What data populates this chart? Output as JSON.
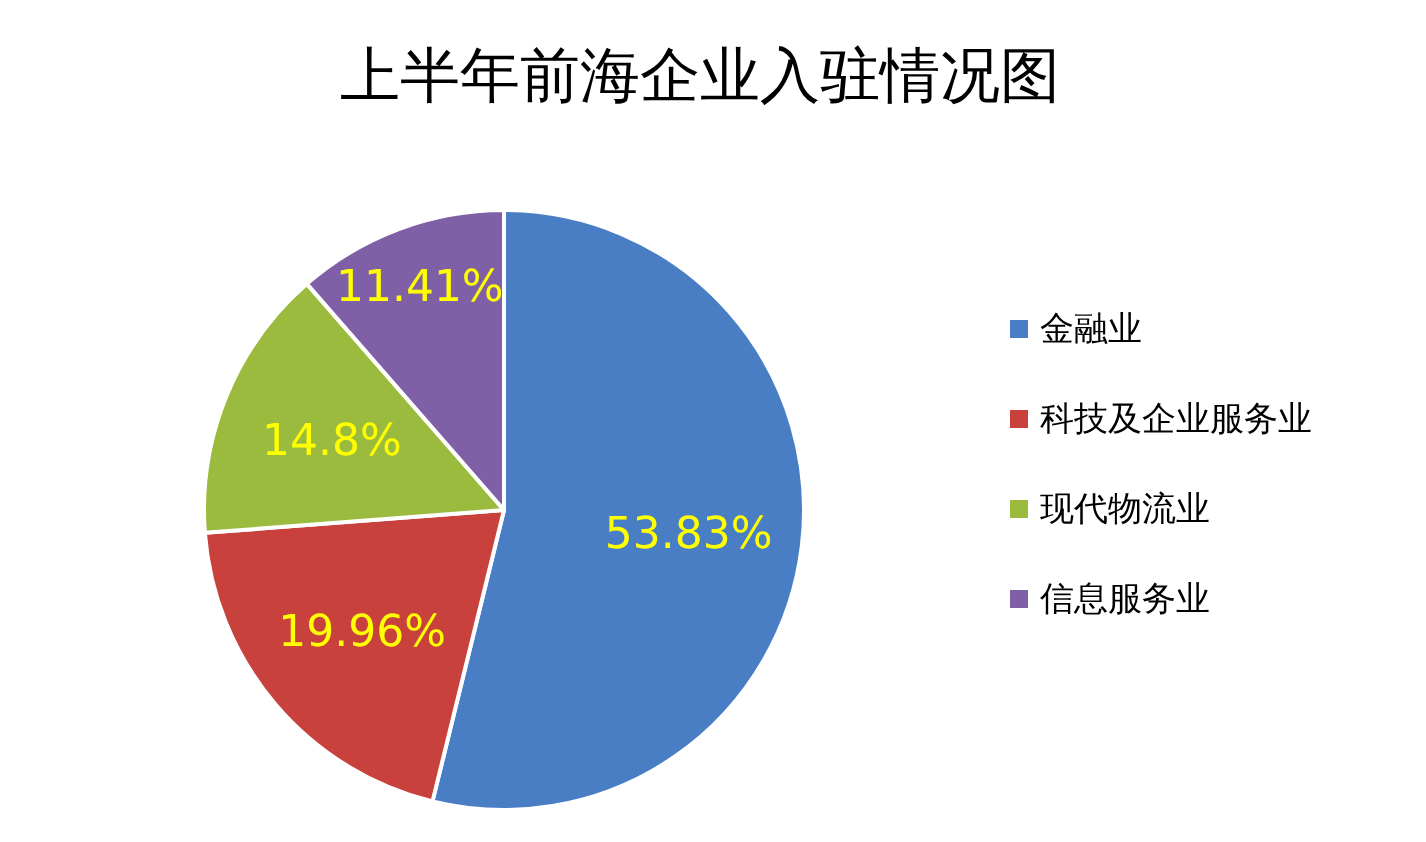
{
  "chart_data": {
    "type": "pie",
    "title": "上半年前海企业入驻情况图",
    "categories": [
      "金融业",
      "科技及企业服务业",
      "现代物流业",
      "信息服务业"
    ],
    "values": [
      53.83,
      19.96,
      14.8,
      11.41
    ],
    "colors": [
      "#4a7ec4",
      "#c8413d",
      "#9bbb3f",
      "#7f5fa6"
    ],
    "value_labels": [
      "53.83%",
      "19.96%",
      "14.8%",
      "11.41%"
    ],
    "legend": "right"
  }
}
